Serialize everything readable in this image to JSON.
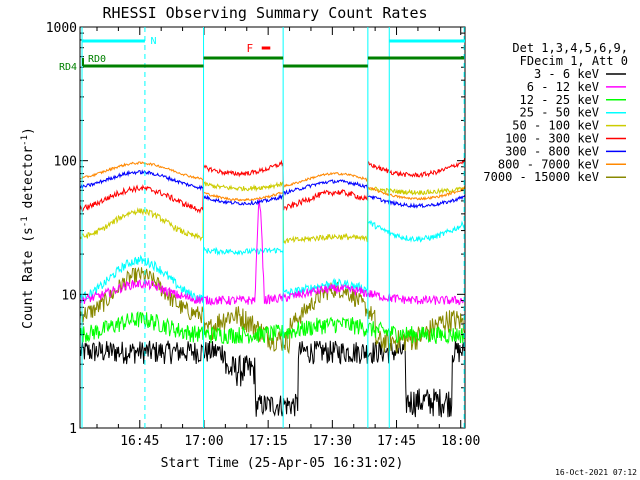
{
  "chart_data": {
    "type": "line",
    "title": "RHESSI Observing Summary Count Rates",
    "xlabel": "Start Time (25-Apr-05 16:31:02)",
    "ylabel_main": "Count Rate (s",
    "ylabel_sup1": "-1",
    "ylabel_mid": " detector",
    "ylabel_sup2": "-1",
    "ylabel_end": ")",
    "yscale": "log",
    "ylim": [
      1,
      1000
    ],
    "xlim_min": [
      31.03,
      121
    ],
    "x_ticks": [
      {
        "min": 45,
        "label": "16:45"
      },
      {
        "min": 60,
        "label": "17:00"
      },
      {
        "min": 75,
        "label": "17:15"
      },
      {
        "min": 90,
        "label": "17:30"
      },
      {
        "min": 105,
        "label": "17:45"
      },
      {
        "min": 120,
        "label": "18:00"
      }
    ],
    "y_ticks": [
      {
        "v": 1,
        "label": "1"
      },
      {
        "v": 10,
        "label": "10"
      },
      {
        "v": 100,
        "label": "100"
      },
      {
        "v": 1000,
        "label": "1000"
      }
    ],
    "legend_header": [
      "Det 1,3,4,5,6,9,",
      "FDecim 1, Att 0"
    ],
    "series": [
      {
        "name": "3 - 6 keV",
        "color": "#000000"
      },
      {
        "name": "6 - 12 keV",
        "color": "#ff00ff"
      },
      {
        "name": "12 - 25 keV",
        "color": "#00ff00"
      },
      {
        "name": "25 - 50 keV",
        "color": "#00ffff"
      },
      {
        "name": "50 - 100 keV",
        "color": "#cccc00"
      },
      {
        "name": "100 - 300 keV",
        "color": "#ff0000"
      },
      {
        "name": "300 - 800 keV",
        "color": "#0000ff"
      },
      {
        "name": "800 - 7000 keV",
        "color": "#ff8800"
      },
      {
        "name": "7000 - 15000 keV",
        "color": "#888800"
      }
    ],
    "flags": {
      "night_label": "N",
      "flare_label": "F",
      "rd0_label": "RD0",
      "rd4_label": "RD4"
    },
    "date_stamp": "16-Oct-2021 07:12"
  }
}
